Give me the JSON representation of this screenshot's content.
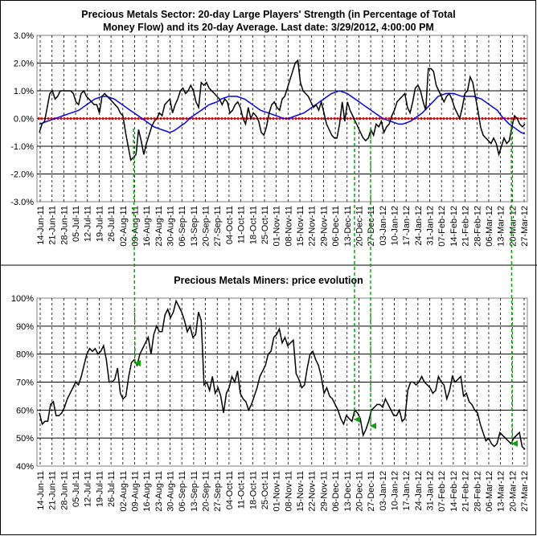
{
  "chart_data": [
    {
      "type": "line",
      "title_lines": [
        "Precious Metals Sector: 20-day Large Players' Strength (in Percentage of Total",
        "Money Flow) and its 20-day Average. Last date: 3/29/2012, 4:00:00 PM"
      ],
      "x_tick_labels": [
        "14-Jun-11",
        "21-Jun-11",
        "28-Jun-11",
        "05-Jul-11",
        "12-Jul-11",
        "19-Jul-11",
        "26-Jul-11",
        "02-Aug-11",
        "09-Aug-11",
        "16-Aug-11",
        "23-Aug-11",
        "30-Aug-11",
        "06-Sep-11",
        "13-Sep-11",
        "20-Sep-11",
        "27-Sep-11",
        "04-Oct-11",
        "11-Oct-11",
        "18-Oct-11",
        "25-Oct-11",
        "01-Nov-11",
        "08-Nov-11",
        "15-Nov-11",
        "22-Nov-11",
        "29-Nov-11",
        "06-Dec-11",
        "13-Dec-11",
        "20-Dec-11",
        "27-Dec-11",
        "03-Jan-12",
        "10-Jan-12",
        "17-Jan-12",
        "24-Jan-12",
        "31-Jan-12",
        "07-Feb-12",
        "14-Feb-12",
        "21-Feb-12",
        "28-Feb-12",
        "06-Mar-12",
        "13-Mar-12",
        "20-Mar-12",
        "27-Mar-12"
      ],
      "y_tick_labels": [
        "3.0%",
        "2.0%",
        "1.0%",
        "0.0%",
        "-1.0%",
        "-2.0%",
        "-3.0%"
      ],
      "ylim": [
        -3.0,
        3.0
      ],
      "grid": true,
      "reference_line": 0,
      "series": [
        {
          "color": "#000000",
          "values": [
            -0.5,
            -0.2,
            -0.1,
            0.4,
            0.9,
            1.0,
            0.7,
            0.8,
            1.0,
            1.0,
            1.0,
            1.0,
            1.0,
            0.9,
            0.6,
            0.5,
            0.9,
            1.0,
            0.8,
            0.7,
            0.6,
            0.5,
            0.5,
            0.2,
            0.8,
            0.9,
            0.8,
            0.7,
            0.6,
            0.5,
            0.4,
            0.2,
            0.1,
            -0.5,
            -1.0,
            -1.5,
            -1.4,
            -1.3,
            -0.4,
            -0.8,
            -1.3,
            -0.9,
            -0.6,
            -0.3,
            -0.1,
            0.0,
            0.2,
            0.1,
            0.5,
            0.6,
            0.7,
            0.2,
            0.5,
            0.7,
            1.0,
            1.1,
            0.9,
            1.0,
            1.2,
            1.0,
            0.6,
            0.4,
            1.3,
            1.2,
            1.3,
            1.1,
            1.0,
            0.9,
            0.8,
            0.7,
            0.5,
            0.7,
            0.6,
            0.2,
            0.3,
            0.5,
            0.6,
            0.4,
            0.0,
            -0.2,
            0.4,
            0.0,
            0.2,
            0.1,
            -0.1,
            -0.5,
            -0.6,
            -0.3,
            0.2,
            0.5,
            0.6,
            0.4,
            0.3,
            0.7,
            0.8,
            1.1,
            1.4,
            1.7,
            2.0,
            2.1,
            1.3,
            1.0,
            0.9,
            0.8,
            0.6,
            0.4,
            0.5,
            0.3,
            0.6,
            0.2,
            -0.2,
            -0.4,
            -0.6,
            -0.7,
            -0.7,
            -0.2,
            0.6,
            -0.1,
            0.6,
            0.3,
            0.1,
            -0.1,
            -0.3,
            -0.5,
            -0.7,
            -0.8,
            -0.7,
            -0.4,
            -0.6,
            -0.2,
            -0.3,
            -0.1,
            -0.5,
            -0.3,
            -0.2,
            0.1,
            0.3,
            0.6,
            0.7,
            0.8,
            0.9,
            0.4,
            0.2,
            0.6,
            1.1,
            1.2,
            1.0,
            0.6,
            0.3,
            1.8,
            1.8,
            1.7,
            1.2,
            1.0,
            0.8,
            0.6,
            0.8,
            0.9,
            0.7,
            0.4,
            0.2,
            0.0,
            0.4,
            0.9,
            1.0,
            1.5,
            1.3,
            0.8,
            0.3,
            -0.3,
            -0.6,
            -0.7,
            -0.8,
            -0.9,
            -0.7,
            -0.9,
            -1.3,
            -1.0,
            -0.7,
            -0.9,
            -0.8,
            -0.3,
            0.1,
            0.0,
            -0.2,
            -0.3,
            -0.2
          ]
        },
        {
          "color": "#0000ff",
          "values": [
            -0.2,
            -0.15,
            -0.1,
            -0.05,
            0.0,
            0.05,
            0.1,
            0.15,
            0.2,
            0.25,
            0.3,
            0.4,
            0.5,
            0.6,
            0.7,
            0.75,
            0.8,
            0.8,
            0.75,
            0.7,
            0.6,
            0.5,
            0.4,
            0.3,
            0.2,
            0.1,
            0.0,
            -0.1,
            -0.2,
            -0.3,
            -0.35,
            -0.4,
            -0.45,
            -0.5,
            -0.45,
            -0.35,
            -0.25,
            -0.15,
            0.0,
            0.1,
            0.2,
            0.3,
            0.4,
            0.5,
            0.55,
            0.6,
            0.7,
            0.75,
            0.8,
            0.8,
            0.8,
            0.75,
            0.7,
            0.6,
            0.5,
            0.4,
            0.3,
            0.25,
            0.2,
            0.15,
            0.1,
            0.05,
            0.0,
            0.0,
            0.05,
            0.1,
            0.15,
            0.2,
            0.3,
            0.4,
            0.5,
            0.6,
            0.7,
            0.8,
            0.9,
            0.95,
            1.0,
            0.95,
            0.9,
            0.8,
            0.7,
            0.6,
            0.5,
            0.4,
            0.3,
            0.2,
            0.1,
            0.0,
            -0.05,
            -0.1,
            -0.15,
            -0.2,
            -0.2,
            -0.15,
            -0.1,
            0.0,
            0.1,
            0.2,
            0.35,
            0.5,
            0.65,
            0.8,
            0.85,
            0.9,
            0.9,
            0.9,
            0.85,
            0.8,
            0.8,
            0.8,
            0.8,
            0.75,
            0.7,
            0.6,
            0.5,
            0.4,
            0.3,
            0.1,
            -0.05,
            -0.2,
            -0.3,
            -0.4,
            -0.5,
            -0.55
          ]
        }
      ]
    },
    {
      "type": "line",
      "title": "Precious Metals Miners: price evolution",
      "x_tick_labels": [
        "14-Jun-11",
        "21-Jun-11",
        "28-Jun-11",
        "05-Jul-11",
        "12-Jul-11",
        "19-Jul-11",
        "26-Jul-11",
        "02-Aug-11",
        "09-Aug-11",
        "16-Aug-11",
        "23-Aug-11",
        "30-Aug-11",
        "06-Sep-11",
        "13-Sep-11",
        "20-Sep-11",
        "27-Sep-11",
        "04-Oct-11",
        "11-Oct-11",
        "18-Oct-11",
        "25-Oct-11",
        "01-Nov-11",
        "08-Nov-11",
        "15-Nov-11",
        "22-Nov-11",
        "29-Nov-11",
        "06-Dec-11",
        "13-Dec-11",
        "20-Dec-11",
        "27-Dec-11",
        "03-Jan-12",
        "10-Jan-12",
        "17-Jan-12",
        "24-Jan-12",
        "31-Jan-12",
        "07-Feb-12",
        "14-Feb-12",
        "21-Feb-12",
        "28-Feb-12",
        "06-Mar-12",
        "13-Mar-12",
        "20-Mar-12",
        "27-Mar-12"
      ],
      "y_tick_labels": [
        "100%",
        "90%",
        "80%",
        "70%",
        "60%",
        "50%",
        "40%"
      ],
      "ylim": [
        40,
        100
      ],
      "grid": true,
      "series": [
        {
          "color": "#000000",
          "values": [
            59,
            55,
            56,
            56,
            62,
            63,
            58,
            58,
            59,
            61,
            64,
            66,
            68,
            70,
            69,
            72,
            76,
            80,
            82,
            81,
            82,
            80,
            81,
            83,
            78,
            70,
            70,
            71,
            75,
            66,
            64,
            65,
            72,
            77,
            78,
            76,
            80,
            82,
            84,
            86,
            80,
            87,
            90,
            88,
            88,
            94,
            96,
            93,
            95,
            99,
            97,
            95,
            92,
            88,
            90,
            86,
            87,
            95,
            92,
            69,
            70,
            67,
            72,
            66,
            68,
            65,
            59,
            66,
            68,
            72,
            70,
            74,
            66,
            64,
            63,
            60,
            62,
            65,
            68,
            72,
            74,
            76,
            80,
            81,
            86,
            87,
            89,
            84,
            86,
            83,
            84,
            85,
            73,
            71,
            68,
            69,
            75,
            80,
            81,
            78,
            76,
            72,
            66,
            68,
            65,
            64,
            62,
            60,
            57,
            55,
            58,
            57,
            56,
            60,
            59,
            57,
            51,
            53,
            56,
            60,
            61,
            62,
            62,
            61,
            64,
            62,
            60,
            58,
            58,
            60,
            56,
            57,
            67,
            70,
            70,
            69,
            70,
            72,
            70,
            69,
            68,
            66,
            67,
            72,
            70,
            69,
            64,
            67,
            72,
            70,
            71,
            72,
            65,
            66,
            63,
            62,
            60,
            59,
            55,
            52,
            49,
            50,
            48,
            47,
            48,
            52,
            51,
            50,
            49,
            48,
            50,
            51,
            52,
            47,
            46
          ]
        }
      ]
    }
  ]
}
